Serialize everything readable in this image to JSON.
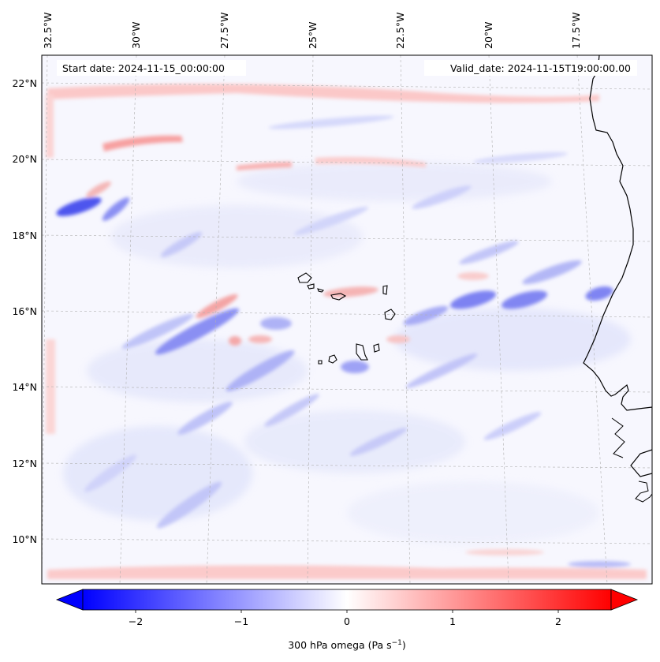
{
  "header": {
    "start_date": "Start date: 2024-11-15_00:00:00",
    "valid_date": "Valid_date: 2024-11-15T19:00:00.00"
  },
  "map": {
    "region": "Cabo Verde / West African coast",
    "lon_range": [
      -32.8,
      -15.8
    ],
    "lat_range": [
      8.8,
      22.8
    ],
    "lon_ticks": [
      "32.5°W",
      "30°W",
      "27.5°W",
      "25°W",
      "22.5°W",
      "20°W",
      "17.5°W"
    ],
    "lat_ticks": [
      "22°N",
      "20°N",
      "18°N",
      "16°N",
      "14°N",
      "12°N",
      "10°N"
    ],
    "gridlines": true,
    "field": "300 hPa vertical velocity (omega)",
    "colormap": "bwr"
  },
  "colorbar": {
    "label": "300 hPa omega (Pa s",
    "label_sup": "−1",
    "label_close": ")",
    "ticks": [
      "−2",
      "−1",
      "0",
      "1",
      "2"
    ],
    "range": [
      -2.5,
      2.5
    ],
    "extend": "both",
    "colors": {
      "neg": "#0000ff",
      "mid": "#ffffff",
      "pos": "#ff0000"
    }
  },
  "chart_data": {
    "type": "heatmap",
    "title": "",
    "xlabel": "",
    "ylabel": "",
    "colorbar_label": "300 hPa omega (Pa s−1)",
    "x_ticks": [
      "32.5°W",
      "30°W",
      "27.5°W",
      "25°W",
      "22.5°W",
      "20°W",
      "17.5°W"
    ],
    "y_ticks": [
      "22°N",
      "20°N",
      "18°N",
      "16°N",
      "14°N",
      "12°N",
      "10°N"
    ],
    "vlim": [
      -2.5,
      2.5
    ]
  }
}
